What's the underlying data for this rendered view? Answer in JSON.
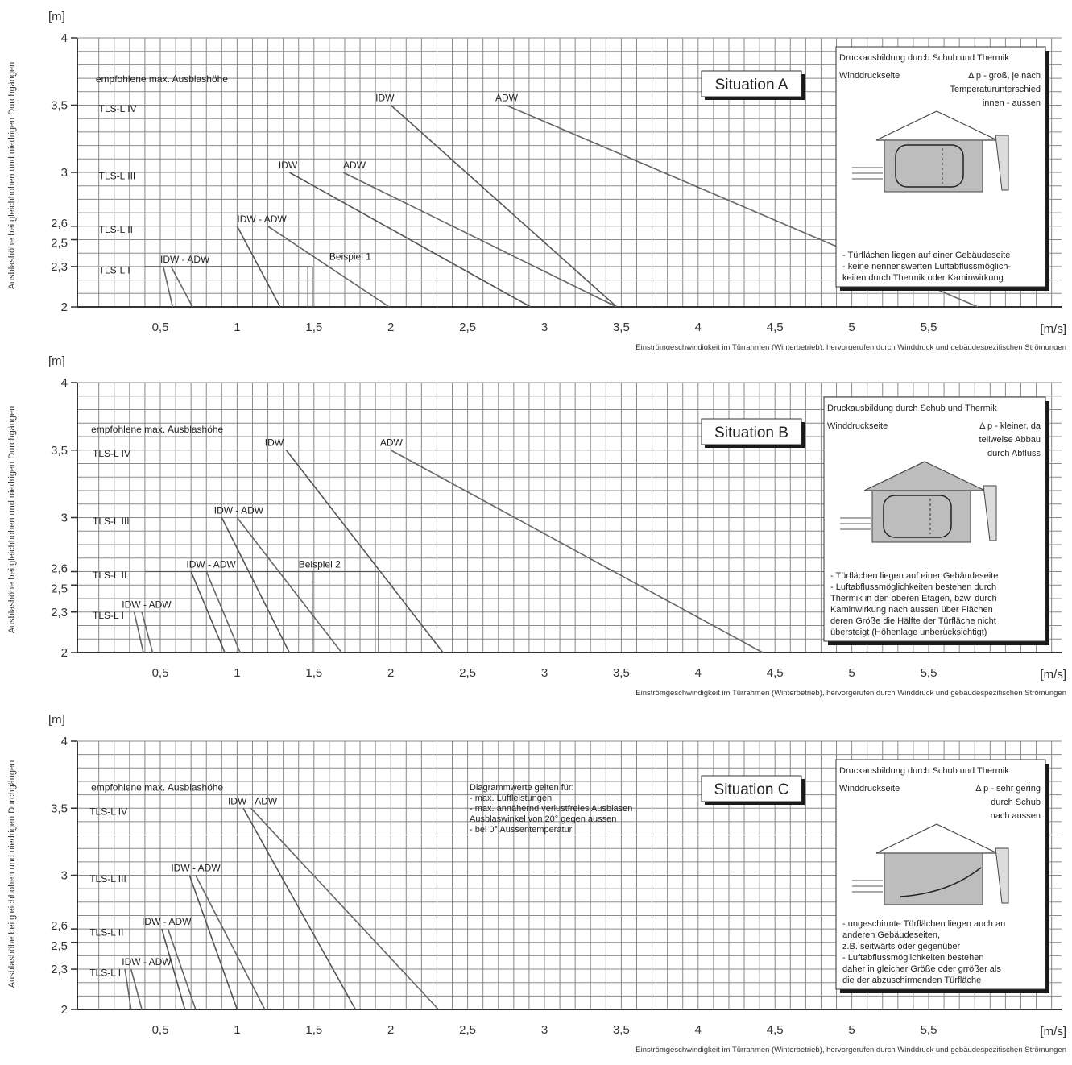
{
  "chart_data": [
    {
      "type": "line",
      "title": "Situation A",
      "yunit": "[m]",
      "xunit": "[m/s]",
      "ylabel": "Ausblashöhe bei gleichhohen und niedrigen Durchgängen",
      "xlabel": "Einströmgeschwindigkeit im Türrahmen (Winterbetrieb), hervorgerufen durch Winddruck und gebäudespezifischen Strömungen",
      "xlim": [
        0,
        6.5
      ],
      "ylim": [
        2,
        4
      ],
      "x_ticks": [
        "0,5",
        "1",
        "1,5",
        "2",
        "2,5",
        "3",
        "3,5",
        "4",
        "4,5",
        "5",
        "5,5"
      ],
      "y_ticks": [
        {
          "v": 2,
          "t": "2"
        },
        {
          "v": 2.3,
          "t": "2,3"
        },
        {
          "v": 2.5,
          "t": "2,5"
        },
        {
          "v": 2.6,
          "t": "2,6"
        },
        {
          "v": 3,
          "t": "3"
        },
        {
          "v": 3.5,
          "t": "3,5"
        },
        {
          "v": 4,
          "t": "4"
        }
      ],
      "grid": true,
      "series": [
        {
          "x": [
            0.52,
            0.58
          ],
          "y": [
            2.3,
            2.0
          ],
          "color": "#666666"
        },
        {
          "x": [
            0.57,
            0.71
          ],
          "y": [
            2.3,
            2.0
          ],
          "color": "#666666"
        },
        {
          "x": [
            1.0,
            1.28
          ],
          "y": [
            2.6,
            2.0
          ],
          "color": "#555555"
        },
        {
          "x": [
            1.2,
            1.99
          ],
          "y": [
            2.6,
            2.0
          ],
          "color": "#666666"
        },
        {
          "x": [
            1.34,
            2.91
          ],
          "y": [
            3.0,
            2.0
          ],
          "color": "#555555"
        },
        {
          "x": [
            1.69,
            3.47
          ],
          "y": [
            3.0,
            2.0
          ],
          "color": "#666666"
        },
        {
          "x": [
            2.0,
            3.47
          ],
          "y": [
            3.5,
            2.0
          ],
          "color": "#555555"
        },
        {
          "x": [
            2.75,
            5.82
          ],
          "y": [
            3.5,
            2.0
          ],
          "color": "#666666"
        }
      ],
      "guides": [
        {
          "x": [
            0.4,
            1.49
          ],
          "y": [
            2.3,
            2.3
          ]
        },
        {
          "x": [
            1.46,
            1.46
          ],
          "y": [
            2.3,
            2.0
          ]
        },
        {
          "x": [
            1.49,
            1.49
          ],
          "y": [
            2.3,
            2.0
          ]
        }
      ],
      "annotations": [
        {
          "text": "empfohlene max. Ausblashöhe",
          "x": 0.08,
          "y": 3.67
        },
        {
          "text": "TLS-L IV",
          "x": 0.1,
          "y": 3.45
        },
        {
          "text": "TLS-L III",
          "x": 0.1,
          "y": 2.95
        },
        {
          "text": "TLS-L II",
          "x": 0.1,
          "y": 2.55
        },
        {
          "text": "TLS-L I",
          "x": 0.1,
          "y": 2.25
        },
        {
          "text": "IDW - ADW",
          "x": 0.5,
          "y": 2.33
        },
        {
          "text": "IDW - ADW",
          "x": 1.0,
          "y": 2.63
        },
        {
          "text": "IDW",
          "x": 1.27,
          "y": 3.03
        },
        {
          "text": "ADW",
          "x": 1.69,
          "y": 3.03
        },
        {
          "text": "IDW",
          "x": 1.9,
          "y": 3.53
        },
        {
          "text": "ADW",
          "x": 2.68,
          "y": 3.53
        },
        {
          "text": "Beispiel 1",
          "x": 1.6,
          "y": 2.35
        }
      ],
      "info_box": {
        "heading": "Druckausbildung durch Schub und Thermik",
        "side_label": "Winddruckseite",
        "dp_lines": [
          "Δ p - groß, je nach",
          "Temperaturunterschied",
          "innen - aussen"
        ],
        "bullets": [
          "-  Türflächen liegen auf einer Gebäudeseite",
          "-  keine nennenswerten Luftabflussmöglich-",
          "   keiten durch Thermik oder Kaminwirkung"
        ]
      }
    },
    {
      "type": "line",
      "title": "Situation B",
      "yunit": "[m]",
      "xunit": "[m/s]",
      "ylabel": "Ausblashöhe bei gleichhohen und niedrigen Durchgängen",
      "xlabel": "Einströmgeschwindigkeit im Türrahmen (Winterbetrieb), hervorgerufen durch Winddruck und gebäudespezifischen Strömungen",
      "xlim": [
        0,
        6.5
      ],
      "ylim": [
        2,
        4
      ],
      "x_ticks": [
        "0,5",
        "1",
        "1,5",
        "2",
        "2,5",
        "3",
        "3,5",
        "4",
        "4,5",
        "5",
        "5,5"
      ],
      "y_ticks": [
        {
          "v": 2,
          "t": "2"
        },
        {
          "v": 2.3,
          "t": "2,3"
        },
        {
          "v": 2.5,
          "t": "2,5"
        },
        {
          "v": 2.6,
          "t": "2,6"
        },
        {
          "v": 3,
          "t": "3"
        },
        {
          "v": 3.5,
          "t": "3,5"
        },
        {
          "v": 4,
          "t": "4"
        }
      ],
      "grid": true,
      "series": [
        {
          "x": [
            0.33,
            0.39
          ],
          "y": [
            2.3,
            2.0
          ],
          "color": "#666666"
        },
        {
          "x": [
            0.38,
            0.45
          ],
          "y": [
            2.3,
            2.0
          ],
          "color": "#666666"
        },
        {
          "x": [
            0.7,
            0.92
          ],
          "y": [
            2.6,
            2.0
          ],
          "color": "#555555"
        },
        {
          "x": [
            0.8,
            1.02
          ],
          "y": [
            2.6,
            2.0
          ],
          "color": "#666666"
        },
        {
          "x": [
            0.9,
            1.34
          ],
          "y": [
            3.0,
            2.0
          ],
          "color": "#555555"
        },
        {
          "x": [
            1.0,
            1.68
          ],
          "y": [
            3.0,
            2.0
          ],
          "color": "#666666"
        },
        {
          "x": [
            1.32,
            2.34
          ],
          "y": [
            3.5,
            2.0
          ],
          "color": "#555555"
        },
        {
          "x": [
            2.0,
            4.42
          ],
          "y": [
            3.5,
            2.0
          ],
          "color": "#666666"
        }
      ],
      "guides": [
        {
          "x": [
            0.4,
            1.92
          ],
          "y": [
            2.6,
            2.6
          ]
        },
        {
          "x": [
            1.49,
            1.49
          ],
          "y": [
            2.6,
            2.0
          ]
        },
        {
          "x": [
            1.92,
            1.92
          ],
          "y": [
            2.6,
            2.0
          ]
        }
      ],
      "annotations": [
        {
          "text": "empfohlene max. Ausblashöhe",
          "x": 0.05,
          "y": 3.63
        },
        {
          "text": "TLS-L IV",
          "x": 0.06,
          "y": 3.45
        },
        {
          "text": "TLS-L III",
          "x": 0.06,
          "y": 2.95
        },
        {
          "text": "TLS-L II",
          "x": 0.06,
          "y": 2.55
        },
        {
          "text": "TLS-L I",
          "x": 0.06,
          "y": 2.25
        },
        {
          "text": "IDW - ADW",
          "x": 0.25,
          "y": 2.33
        },
        {
          "text": "IDW - ADW",
          "x": 0.67,
          "y": 2.63
        },
        {
          "text": "IDW - ADW",
          "x": 0.85,
          "y": 3.03
        },
        {
          "text": "IDW",
          "x": 1.18,
          "y": 3.53
        },
        {
          "text": "ADW",
          "x": 1.93,
          "y": 3.53
        },
        {
          "text": "Beispiel 2",
          "x": 1.4,
          "y": 2.63
        }
      ],
      "info_box": {
        "heading": "Druckausbildung durch Schub und Thermik",
        "side_label": "Winddruckseite",
        "dp_lines": [
          "Δ p - kleiner, da",
          "teilweise Abbau",
          "durch Abfluss"
        ],
        "bullets": [
          "-  Türflächen liegen auf einer Gebäudeseite",
          "-  Luftabflussmöglichkeiten bestehen durch",
          "   Thermik in den oberen Etagen, bzw. durch",
          "   Kaminwirkung nach aussen über Flächen",
          "   deren Größe die Hälfte der Türfläche nicht",
          "   übersteigt (Höhenlage unberücksichtigt)"
        ]
      }
    },
    {
      "type": "line",
      "title": "Situation C",
      "yunit": "[m]",
      "xunit": "[m/s]",
      "ylabel": "Ausblashöhe bei gleichhohen und niedrigen Durchgängen",
      "xlabel": "Einströmgeschwindigkeit im Türrahmen (Winterbetrieb), hervorgerufen durch Winddruck und gebäudespezifischen Strömungen",
      "xlim": [
        0,
        6.5
      ],
      "ylim": [
        2,
        4
      ],
      "x_ticks": [
        "0,5",
        "1",
        "1,5",
        "2",
        "2,5",
        "3",
        "3,5",
        "4",
        "4,5",
        "5",
        "5,5"
      ],
      "y_ticks": [
        {
          "v": 2,
          "t": "2"
        },
        {
          "v": 2.3,
          "t": "2,3"
        },
        {
          "v": 2.5,
          "t": "2,5"
        },
        {
          "v": 2.6,
          "t": "2,6"
        },
        {
          "v": 3,
          "t": "3"
        },
        {
          "v": 3.5,
          "t": "3,5"
        },
        {
          "v": 4,
          "t": "4"
        }
      ],
      "grid": true,
      "series": [
        {
          "x": [
            0.27,
            0.31
          ],
          "y": [
            2.3,
            2.0
          ],
          "color": "#666666"
        },
        {
          "x": [
            0.31,
            0.38
          ],
          "y": [
            2.3,
            2.0
          ],
          "color": "#666666"
        },
        {
          "x": [
            0.51,
            0.66
          ],
          "y": [
            2.6,
            2.0
          ],
          "color": "#555555"
        },
        {
          "x": [
            0.55,
            0.73
          ],
          "y": [
            2.6,
            2.0
          ],
          "color": "#666666"
        },
        {
          "x": [
            0.69,
            1.0
          ],
          "y": [
            3.0,
            2.0
          ],
          "color": "#555555"
        },
        {
          "x": [
            0.73,
            1.18
          ],
          "y": [
            3.0,
            2.0
          ],
          "color": "#666666"
        },
        {
          "x": [
            1.04,
            1.77
          ],
          "y": [
            3.5,
            2.0
          ],
          "color": "#555555"
        },
        {
          "x": [
            1.09,
            2.31
          ],
          "y": [
            3.5,
            2.0
          ],
          "color": "#666666"
        }
      ],
      "guides": [],
      "annotations": [
        {
          "text": "empfohlene max. Ausblashöhe",
          "x": 0.05,
          "y": 3.63
        },
        {
          "text": "TLS-L IV",
          "x": 0.04,
          "y": 3.45
        },
        {
          "text": "TLS-L III",
          "x": 0.04,
          "y": 2.95
        },
        {
          "text": "TLS-L II",
          "x": 0.04,
          "y": 2.55
        },
        {
          "text": "TLS-L I",
          "x": 0.04,
          "y": 2.25
        },
        {
          "text": "IDW - ADW",
          "x": 0.25,
          "y": 2.33
        },
        {
          "text": "IDW - ADW",
          "x": 0.38,
          "y": 2.63
        },
        {
          "text": "IDW - ADW",
          "x": 0.57,
          "y": 3.03
        },
        {
          "text": "IDW - ADW",
          "x": 0.94,
          "y": 3.53
        }
      ],
      "note_lines": [
        "Diagrammwerte gelten für:",
        "- max. Luftleistungen",
        "- max. annähernd verlustfreies Ausblasen",
        "  Ausblaswinkel von 20° gegen aussen",
        "- bei 0° Aussentemperatur"
      ],
      "info_box": {
        "heading": "Druckausbildung durch Schub und Thermik",
        "side_label": "Winddruckseite",
        "dp_lines": [
          "Δ p - sehr gering",
          "durch Schub",
          "nach aussen"
        ],
        "bullets": [
          "-  ungeschirmte Türflächen liegen auch an",
          "   anderen Gebäudeseiten,",
          "   z.B. seitwärts oder gegenüber",
          "-  Luftabflussmöglichkeiten bestehen",
          "   daher in gleicher Größe oder grrößer als",
          "   die der abzuschirmenden Türfläche"
        ]
      }
    }
  ]
}
